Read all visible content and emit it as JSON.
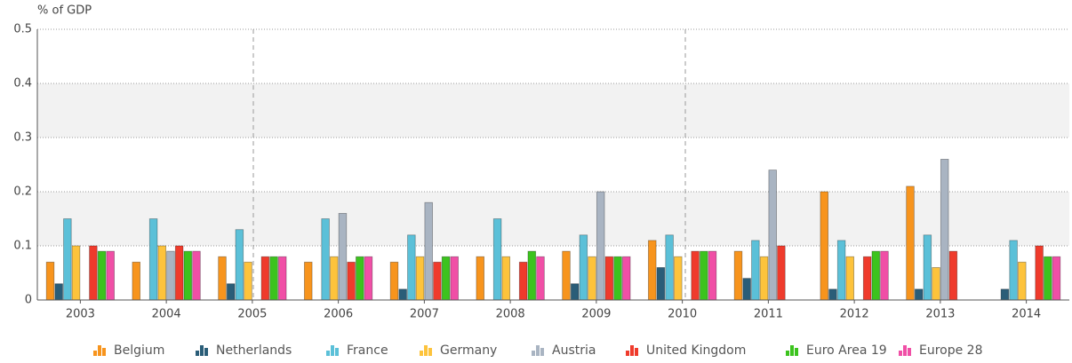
{
  "chart_data": {
    "type": "bar",
    "y_axis_label": "% of GDP",
    "categories": [
      "2003",
      "2004",
      "2005",
      "2006",
      "2007",
      "2008",
      "2009",
      "2010",
      "2011",
      "2012",
      "2013",
      "2014"
    ],
    "series": [
      {
        "name": "Belgium",
        "color": "#f7941d",
        "values": [
          0.07,
          0.07,
          0.08,
          0.07,
          0.07,
          0.08,
          0.09,
          0.11,
          0.09,
          0.2,
          0.21,
          null
        ]
      },
      {
        "name": "Netherlands",
        "color": "#2a5d78",
        "values": [
          0.03,
          null,
          0.03,
          null,
          0.02,
          null,
          0.03,
          0.06,
          0.04,
          0.02,
          0.02,
          0.02
        ]
      },
      {
        "name": "France",
        "color": "#5bc0d8",
        "values": [
          0.15,
          0.15,
          0.13,
          0.15,
          0.12,
          0.15,
          0.12,
          0.12,
          0.11,
          0.11,
          0.12,
          0.11
        ]
      },
      {
        "name": "Germany",
        "color": "#fdc33c",
        "values": [
          0.1,
          0.1,
          0.07,
          0.08,
          0.08,
          0.08,
          0.08,
          0.08,
          0.08,
          0.08,
          0.06,
          0.07
        ]
      },
      {
        "name": "Austria",
        "color": "#a9b4c2",
        "values": [
          null,
          0.09,
          null,
          0.16,
          0.18,
          null,
          0.2,
          null,
          0.24,
          null,
          0.26,
          null
        ]
      },
      {
        "name": "United Kingdom",
        "color": "#ef3b2c",
        "values": [
          0.1,
          0.1,
          0.08,
          0.07,
          0.07,
          0.07,
          0.08,
          0.09,
          0.1,
          0.08,
          0.09,
          0.1
        ]
      },
      {
        "name": "Euro Area 19",
        "color": "#3cc31e",
        "values": [
          0.09,
          0.09,
          0.08,
          0.08,
          0.08,
          0.09,
          0.08,
          0.09,
          null,
          0.09,
          null,
          0.08
        ]
      },
      {
        "name": "Europe 28",
        "color": "#f04fa6",
        "values": [
          0.09,
          0.09,
          0.08,
          0.08,
          0.08,
          0.08,
          0.08,
          0.09,
          null,
          0.09,
          null,
          0.08
        ]
      }
    ],
    "ylim": [
      0,
      0.5
    ],
    "yticks": [
      0,
      0.1,
      0.2,
      0.3,
      0.4,
      0.5
    ],
    "grid": true
  }
}
